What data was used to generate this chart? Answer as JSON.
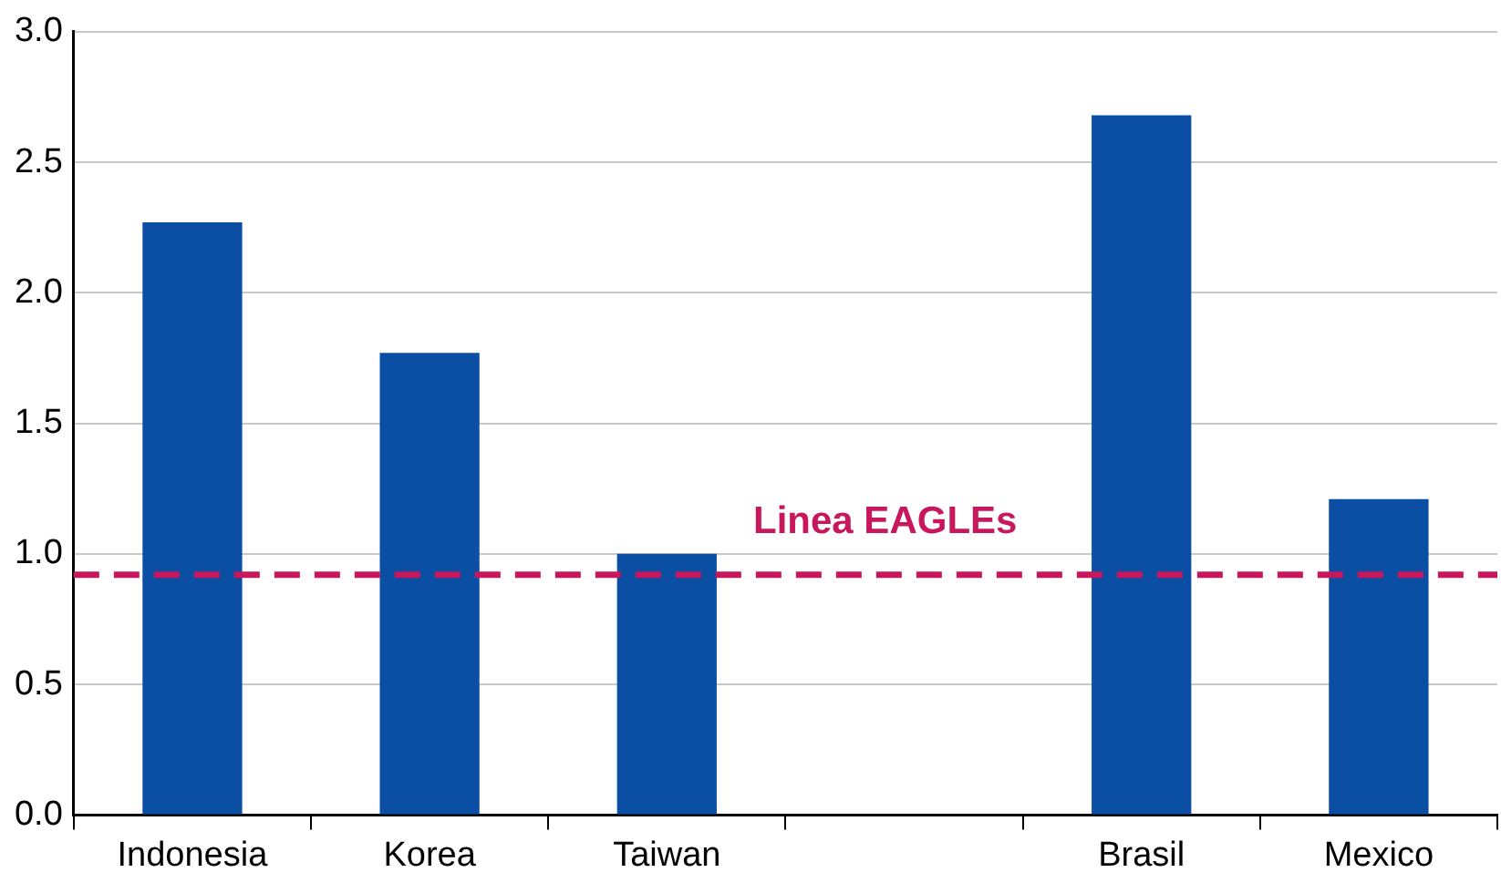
{
  "chart_data": {
    "type": "bar",
    "categories": [
      "Indonesia",
      "Korea",
      "Taiwan",
      null,
      "Brasil",
      "Mexico"
    ],
    "values": [
      2.27,
      1.77,
      1.0,
      null,
      2.68,
      1.21
    ],
    "color": "#0a4fa3",
    "ylim": [
      0,
      3
    ],
    "yticks": [
      {
        "value": 0,
        "label": "0.0"
      },
      {
        "value": 0.5,
        "label": "0.5"
      },
      {
        "value": 1,
        "label": "1.0"
      },
      {
        "value": 1.5,
        "label": "1.5"
      },
      {
        "value": 2,
        "label": "2.0"
      },
      {
        "value": 2.5,
        "label": "2.5"
      },
      {
        "value": 3,
        "label": "3.0"
      }
    ],
    "grid": "y",
    "legend": false,
    "ref_lines": [
      {
        "axis": "y",
        "value": 0.92,
        "label": "Linea EAGLEs",
        "color": "#c8175d",
        "line_style": "dashed"
      }
    ]
  }
}
